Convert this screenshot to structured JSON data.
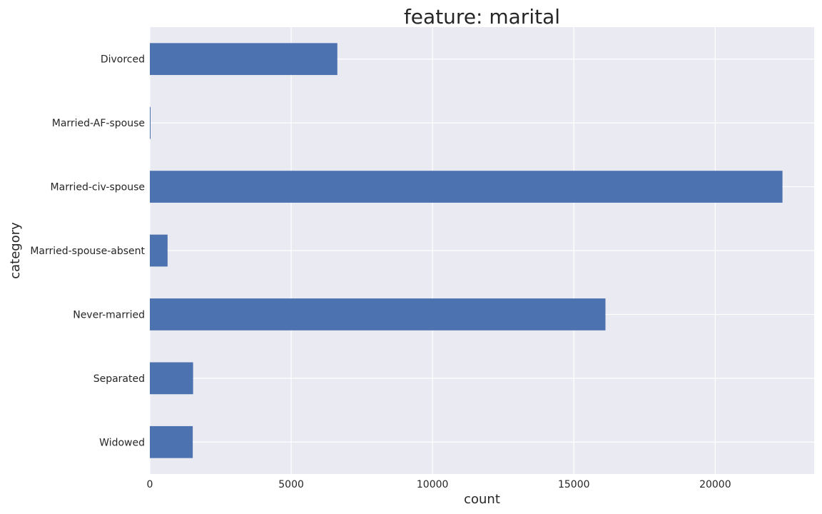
{
  "chart_data": {
    "type": "bar",
    "orientation": "horizontal",
    "title": "feature: marital",
    "xlabel": "count",
    "ylabel": "category",
    "categories": [
      "Divorced",
      "Married-AF-spouse",
      "Married-civ-spouse",
      "Married-spouse-absent",
      "Never-married",
      "Separated",
      "Widowed"
    ],
    "values": [
      6633,
      23,
      22379,
      627,
      16117,
      1530,
      1518
    ],
    "xlim": [
      0,
      23500
    ],
    "xticks": [
      0,
      5000,
      10000,
      15000,
      20000
    ],
    "grid": true,
    "colors": {
      "bar": "#4c72b0",
      "plot_background": "#eaeaf2",
      "grid": "#ffffff"
    }
  }
}
